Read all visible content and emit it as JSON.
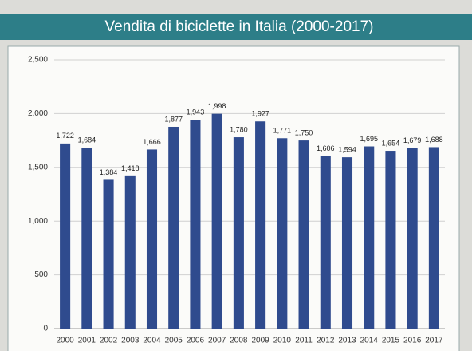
{
  "chart_data": {
    "type": "bar",
    "title": "Vendita di biciclette in Italia (2000-2017)",
    "categories": [
      "2000",
      "2001",
      "2002",
      "2003",
      "2004",
      "2005",
      "2006",
      "2007",
      "2008",
      "2009",
      "2010",
      "2011",
      "2012",
      "2013",
      "2014",
      "2015",
      "2016",
      "2017"
    ],
    "values": [
      1722,
      1684,
      1384,
      1418,
      1666,
      1877,
      1943,
      1998,
      1780,
      1927,
      1771,
      1750,
      1606,
      1594,
      1695,
      1654,
      1679,
      1688
    ],
    "value_labels": [
      "1,722",
      "1,684",
      "1,384",
      "1,418",
      "1,666",
      "1,877",
      "1,943",
      "1,998",
      "1,780",
      "1,927",
      "1,771",
      "1,750",
      "1,606",
      "1,594",
      "1,695",
      "1,654",
      "1,679",
      "1,688"
    ],
    "color": "#2f4b8e",
    "ylim": [
      0,
      2500
    ],
    "yticks": [
      0,
      500,
      {
        "value": 1000,
        "label": "1,000"
      },
      {
        "value": 1500,
        "label": "1,500"
      },
      {
        "value": 2000,
        "label": "2,000"
      },
      {
        "value": 2500,
        "label": "2,500"
      }
    ],
    "grid": true
  }
}
